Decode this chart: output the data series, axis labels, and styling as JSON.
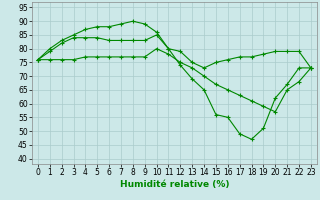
{
  "xlabel": "Humidité relative (%)",
  "background_color": "#cce8e8",
  "grid_color": "#aacccc",
  "line_color": "#008800",
  "marker": "+",
  "xlim": [
    -0.5,
    23.5
  ],
  "ylim": [
    38,
    97
  ],
  "yticks": [
    40,
    45,
    50,
    55,
    60,
    65,
    70,
    75,
    80,
    85,
    90,
    95
  ],
  "xticks": [
    0,
    1,
    2,
    3,
    4,
    5,
    6,
    7,
    8,
    9,
    10,
    11,
    12,
    13,
    14,
    15,
    16,
    17,
    18,
    19,
    20,
    21,
    22,
    23
  ],
  "series": [
    {
      "x": [
        0,
        1,
        2,
        3,
        4,
        5,
        6,
        7,
        8,
        9,
        10,
        11,
        12,
        13,
        14,
        15,
        16,
        17,
        18,
        19,
        20,
        21,
        22,
        23
      ],
      "y": [
        76,
        80,
        83,
        85,
        87,
        88,
        88,
        89,
        90,
        89,
        86,
        80,
        74,
        69,
        65,
        56,
        55,
        49,
        47,
        51,
        62,
        67,
        73,
        73
      ]
    },
    {
      "x": [
        0,
        1,
        2,
        3,
        4,
        5,
        6,
        7,
        8,
        9,
        10,
        11,
        12,
        13,
        14,
        15,
        16,
        17,
        18,
        19,
        20,
        21,
        22,
        23
      ],
      "y": [
        76,
        79,
        82,
        84,
        84,
        84,
        83,
        83,
        83,
        83,
        85,
        80,
        79,
        75,
        73,
        75,
        76,
        77,
        77,
        78,
        79,
        79,
        79,
        73
      ]
    },
    {
      "x": [
        0,
        1,
        2,
        3,
        4,
        5,
        6,
        7,
        8,
        9,
        10,
        11,
        12,
        13,
        14,
        15,
        16,
        17,
        18,
        19,
        20,
        21,
        22,
        23
      ],
      "y": [
        76,
        76,
        76,
        76,
        77,
        77,
        77,
        77,
        77,
        77,
        80,
        78,
        75,
        73,
        70,
        67,
        65,
        63,
        61,
        59,
        57,
        65,
        68,
        73
      ]
    }
  ]
}
